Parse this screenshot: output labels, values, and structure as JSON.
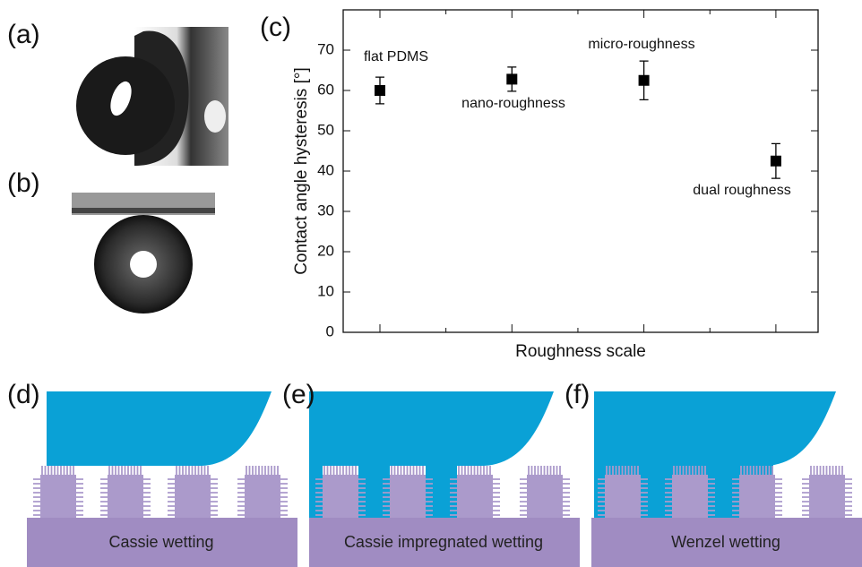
{
  "panels": [
    "(a)",
    "(b)",
    "(c)"
  ],
  "chart_data": {
    "type": "scatter",
    "categories": [
      "flat PDMS",
      "nano-roughness",
      "micro-roughness",
      "dual roughness"
    ],
    "series": [
      {
        "values": [
          60,
          62.8,
          62.5,
          42.5
        ],
        "errors": [
          3.3,
          3,
          4.8,
          4.3
        ],
        "color": "#000000"
      }
    ],
    "ylim": [
      0,
      80
    ],
    "yticks": [
      0,
      10,
      20,
      30,
      40,
      50,
      60,
      70
    ],
    "xlabel": "Roughness scale",
    "ylabel": "Contact angle hysteresis [°]"
  },
  "diagrams": [
    {
      "label": "(d)",
      "text": "Cassie wetting"
    },
    {
      "label": "(e)",
      "text": "Cassie impregnated wetting"
    },
    {
      "label": "(f)",
      "text": "Wenzel wetting"
    }
  ]
}
